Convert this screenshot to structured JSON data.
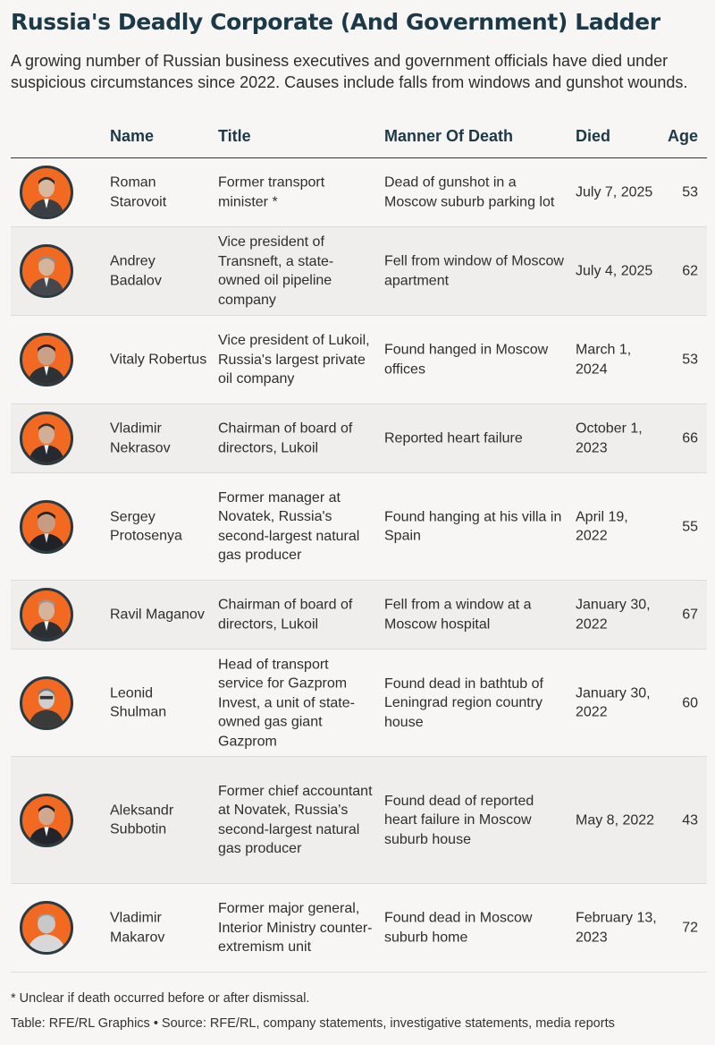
{
  "title": "Russia's Deadly Corporate (And Government) Ladder",
  "subtitle": "A growing number of Russian business executives and government officials have died under suspicious circumstances since 2022. Causes include falls from windows and gunshot wounds.",
  "columns": {
    "name": "Name",
    "title": "Title",
    "manner": "Manner Of Death",
    "died": "Died",
    "age": "Age"
  },
  "rows": [
    {
      "name": "Roman Starovoit",
      "title": "Former transport minister *",
      "manner": "Dead of gunshot in a Moscow suburb parking lot",
      "died": "July 7, 2025",
      "age": "53"
    },
    {
      "name": "Andrey Badalov",
      "title": "Vice president of Transneft, a state-owned oil pipeline company",
      "manner": "Fell from window of Moscow apartment",
      "died": "July 4, 2025",
      "age": "62"
    },
    {
      "name": "Vitaly Robertus",
      "title": "Vice president of Lukoil, Russia's largest private oil company",
      "manner": "Found hanged in Moscow offices",
      "died": "March 1, 2024",
      "age": "53"
    },
    {
      "name": "Vladimir Nekrasov",
      "title": "Chairman of board of directors, Lukoil",
      "manner": "Reported heart failure",
      "died": "October 1, 2023",
      "age": "66"
    },
    {
      "name": "Sergey Protosenya",
      "title": "Former manager at Novatek, Russia's second-largest natural gas producer",
      "manner": "Found hanging at his villa in Spain",
      "died": "April 19, 2022",
      "age": "55"
    },
    {
      "name": "Ravil Maganov",
      "title": "Chairman of board of directors, Lukoil",
      "manner": "Fell from a window at a Moscow hospital",
      "died": "January 30, 2022",
      "age": "67"
    },
    {
      "name": "Leonid Shulman",
      "title": "Head of transport service for Gazprom Invest, a unit of state-owned gas giant Gazprom",
      "manner": "Found dead in bathtub of Leningrad region country house",
      "died": "January 30, 2022",
      "age": "60"
    },
    {
      "name": "Aleksandr Subbotin",
      "title": "Former chief accountant at Novatek, Russia's second-largest natural gas producer",
      "manner": "Found dead of reported heart failure in Moscow suburb house",
      "died": "May 8, 2022",
      "age": "43"
    },
    {
      "name": "Vladimir Makarov",
      "title": "Former major general, Interior Ministry counter-extremism unit",
      "manner": "Found dead in Moscow suburb home",
      "died": "February 13, 2023",
      "age": "72"
    }
  ],
  "footnote": "* Unclear if death occurred before or after dismissal.",
  "source": "Table: RFE/RL Graphics • Source: RFE/RL, company statements, investigative statements, media reports",
  "colors": {
    "accent": "#f26a21",
    "heading": "#1c3948",
    "alt_row": "#efeeec",
    "background": "#f7f6f4"
  }
}
